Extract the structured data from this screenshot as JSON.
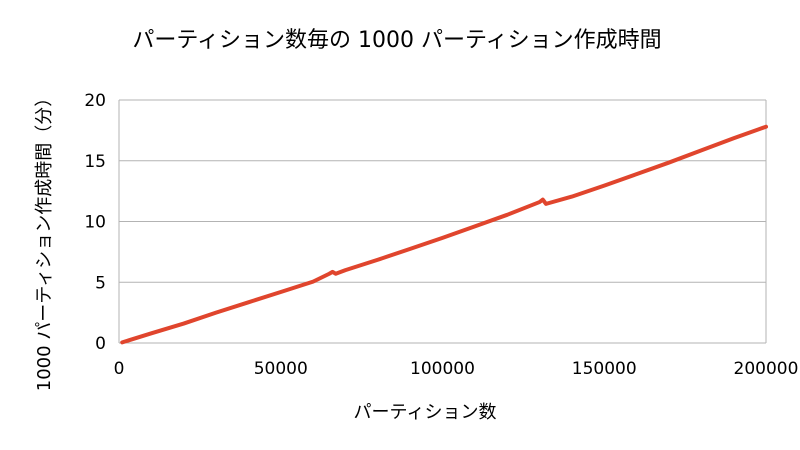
{
  "chart_data": {
    "type": "line",
    "title": "パーティション数毎の 1000 パーティション作成時間",
    "xlabel": "パーティション数",
    "ylabel": "1000 パーティション作成時間（分）",
    "xlim": [
      0,
      200000
    ],
    "ylim": [
      0,
      20
    ],
    "x_ticks": [
      "0",
      "50000",
      "100000",
      "150000",
      "200000"
    ],
    "y_ticks": [
      "0",
      "5",
      "10",
      "15",
      "20"
    ],
    "grid": "horizontal",
    "line_color": "#e0452d",
    "series": [
      {
        "x": [
          1000,
          10000,
          20000,
          30000,
          40000,
          50000,
          60000,
          65000,
          66000,
          67000,
          70000,
          80000,
          90000,
          100000,
          110000,
          120000,
          130000,
          131000,
          132000,
          140000,
          150000,
          160000,
          170000,
          180000,
          190000,
          200000
        ],
        "values": [
          0.05,
          0.8,
          1.6,
          2.5,
          3.35,
          4.2,
          5.05,
          5.7,
          5.85,
          5.7,
          6.0,
          6.85,
          7.75,
          8.65,
          9.6,
          10.55,
          11.6,
          11.8,
          11.45,
          12.05,
          12.95,
          13.9,
          14.85,
          15.85,
          16.85,
          17.8
        ]
      }
    ]
  }
}
